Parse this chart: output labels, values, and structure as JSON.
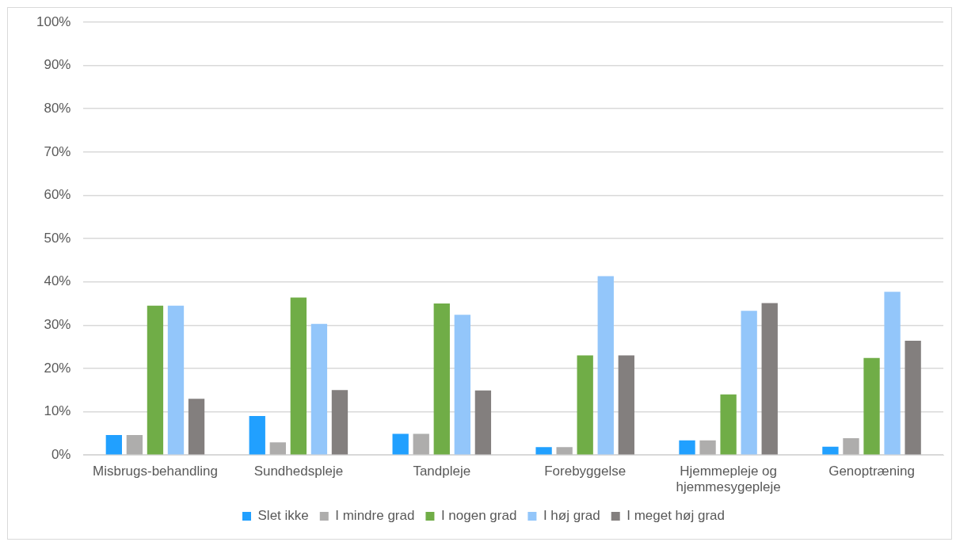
{
  "chart_data": {
    "type": "bar",
    "categories": [
      "Misbrugs-behandling",
      "Sundhedspleje",
      "Tandpleje",
      "Forebyggelse",
      "Hjemmepleje og hjemmesygepleje",
      "Genoptræning"
    ],
    "series": [
      {
        "name": "Slet ikke",
        "color": "#21a0ff",
        "values": [
          4.6,
          9.0,
          4.9,
          1.8,
          3.4,
          1.9
        ]
      },
      {
        "name": "I mindre grad",
        "color": "#aeadac",
        "values": [
          4.6,
          2.9,
          4.9,
          1.8,
          3.4,
          3.9
        ]
      },
      {
        "name": "I nogen grad",
        "color": "#70ad47",
        "values": [
          34.5,
          36.4,
          35.0,
          23.0,
          14.0,
          22.4
        ]
      },
      {
        "name": "I høj grad",
        "color": "#93c6fa",
        "values": [
          34.5,
          30.3,
          32.4,
          41.3,
          33.3,
          37.7
        ]
      },
      {
        "name": "I meget høj grad",
        "color": "#837f7e",
        "values": [
          13.0,
          15.0,
          14.9,
          23.0,
          35.1,
          26.4
        ]
      }
    ],
    "ylim": [
      0,
      100
    ],
    "yticks": [
      {
        "value": 0,
        "label": "0%"
      },
      {
        "value": 10,
        "label": "10%"
      },
      {
        "value": 20,
        "label": "20%"
      },
      {
        "value": 30,
        "label": "30%"
      },
      {
        "value": 40,
        "label": "40%"
      },
      {
        "value": 50,
        "label": "50%"
      },
      {
        "value": 60,
        "label": "60%"
      },
      {
        "value": 70,
        "label": "70%"
      },
      {
        "value": 80,
        "label": "80%"
      },
      {
        "value": 90,
        "label": "90%"
      },
      {
        "value": 100,
        "label": "100%"
      }
    ],
    "grid": "y",
    "legend": "bottom"
  }
}
